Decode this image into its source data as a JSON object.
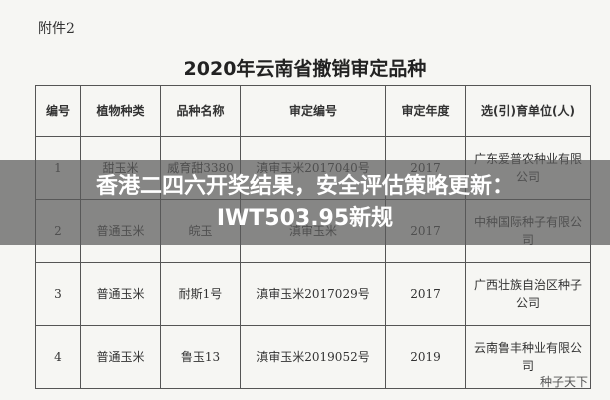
{
  "header": {
    "attachment": "附件2",
    "title": "2020年云南省撤销审定品种"
  },
  "table": {
    "columns": [
      "编号",
      "植物种类",
      "品种名称",
      "审定编号",
      "审定年度",
      "选(引)育单位(人)"
    ],
    "rows": [
      [
        "1",
        "甜玉米",
        "威育甜3380",
        "滇审玉米2017040号",
        "2017",
        "广东爱普农种业有限公司"
      ],
      [
        "2",
        "普通玉米",
        "皖玉",
        "滇审玉米",
        "2017",
        "中种国际种子有限公司"
      ],
      [
        "3",
        "普通玉米",
        "耐斯1号",
        "滇审玉米2017029号",
        "2017",
        "广西壮族自治区种子公司"
      ],
      [
        "4",
        "普通玉米",
        "鲁玉13",
        "滇审玉米2019052号",
        "2019",
        "云南鲁丰种业有限公司"
      ]
    ]
  },
  "banner": "香港二四六开奖结果，安全评估策略更新：IWT503.95新规",
  "watermark": "种子天下"
}
